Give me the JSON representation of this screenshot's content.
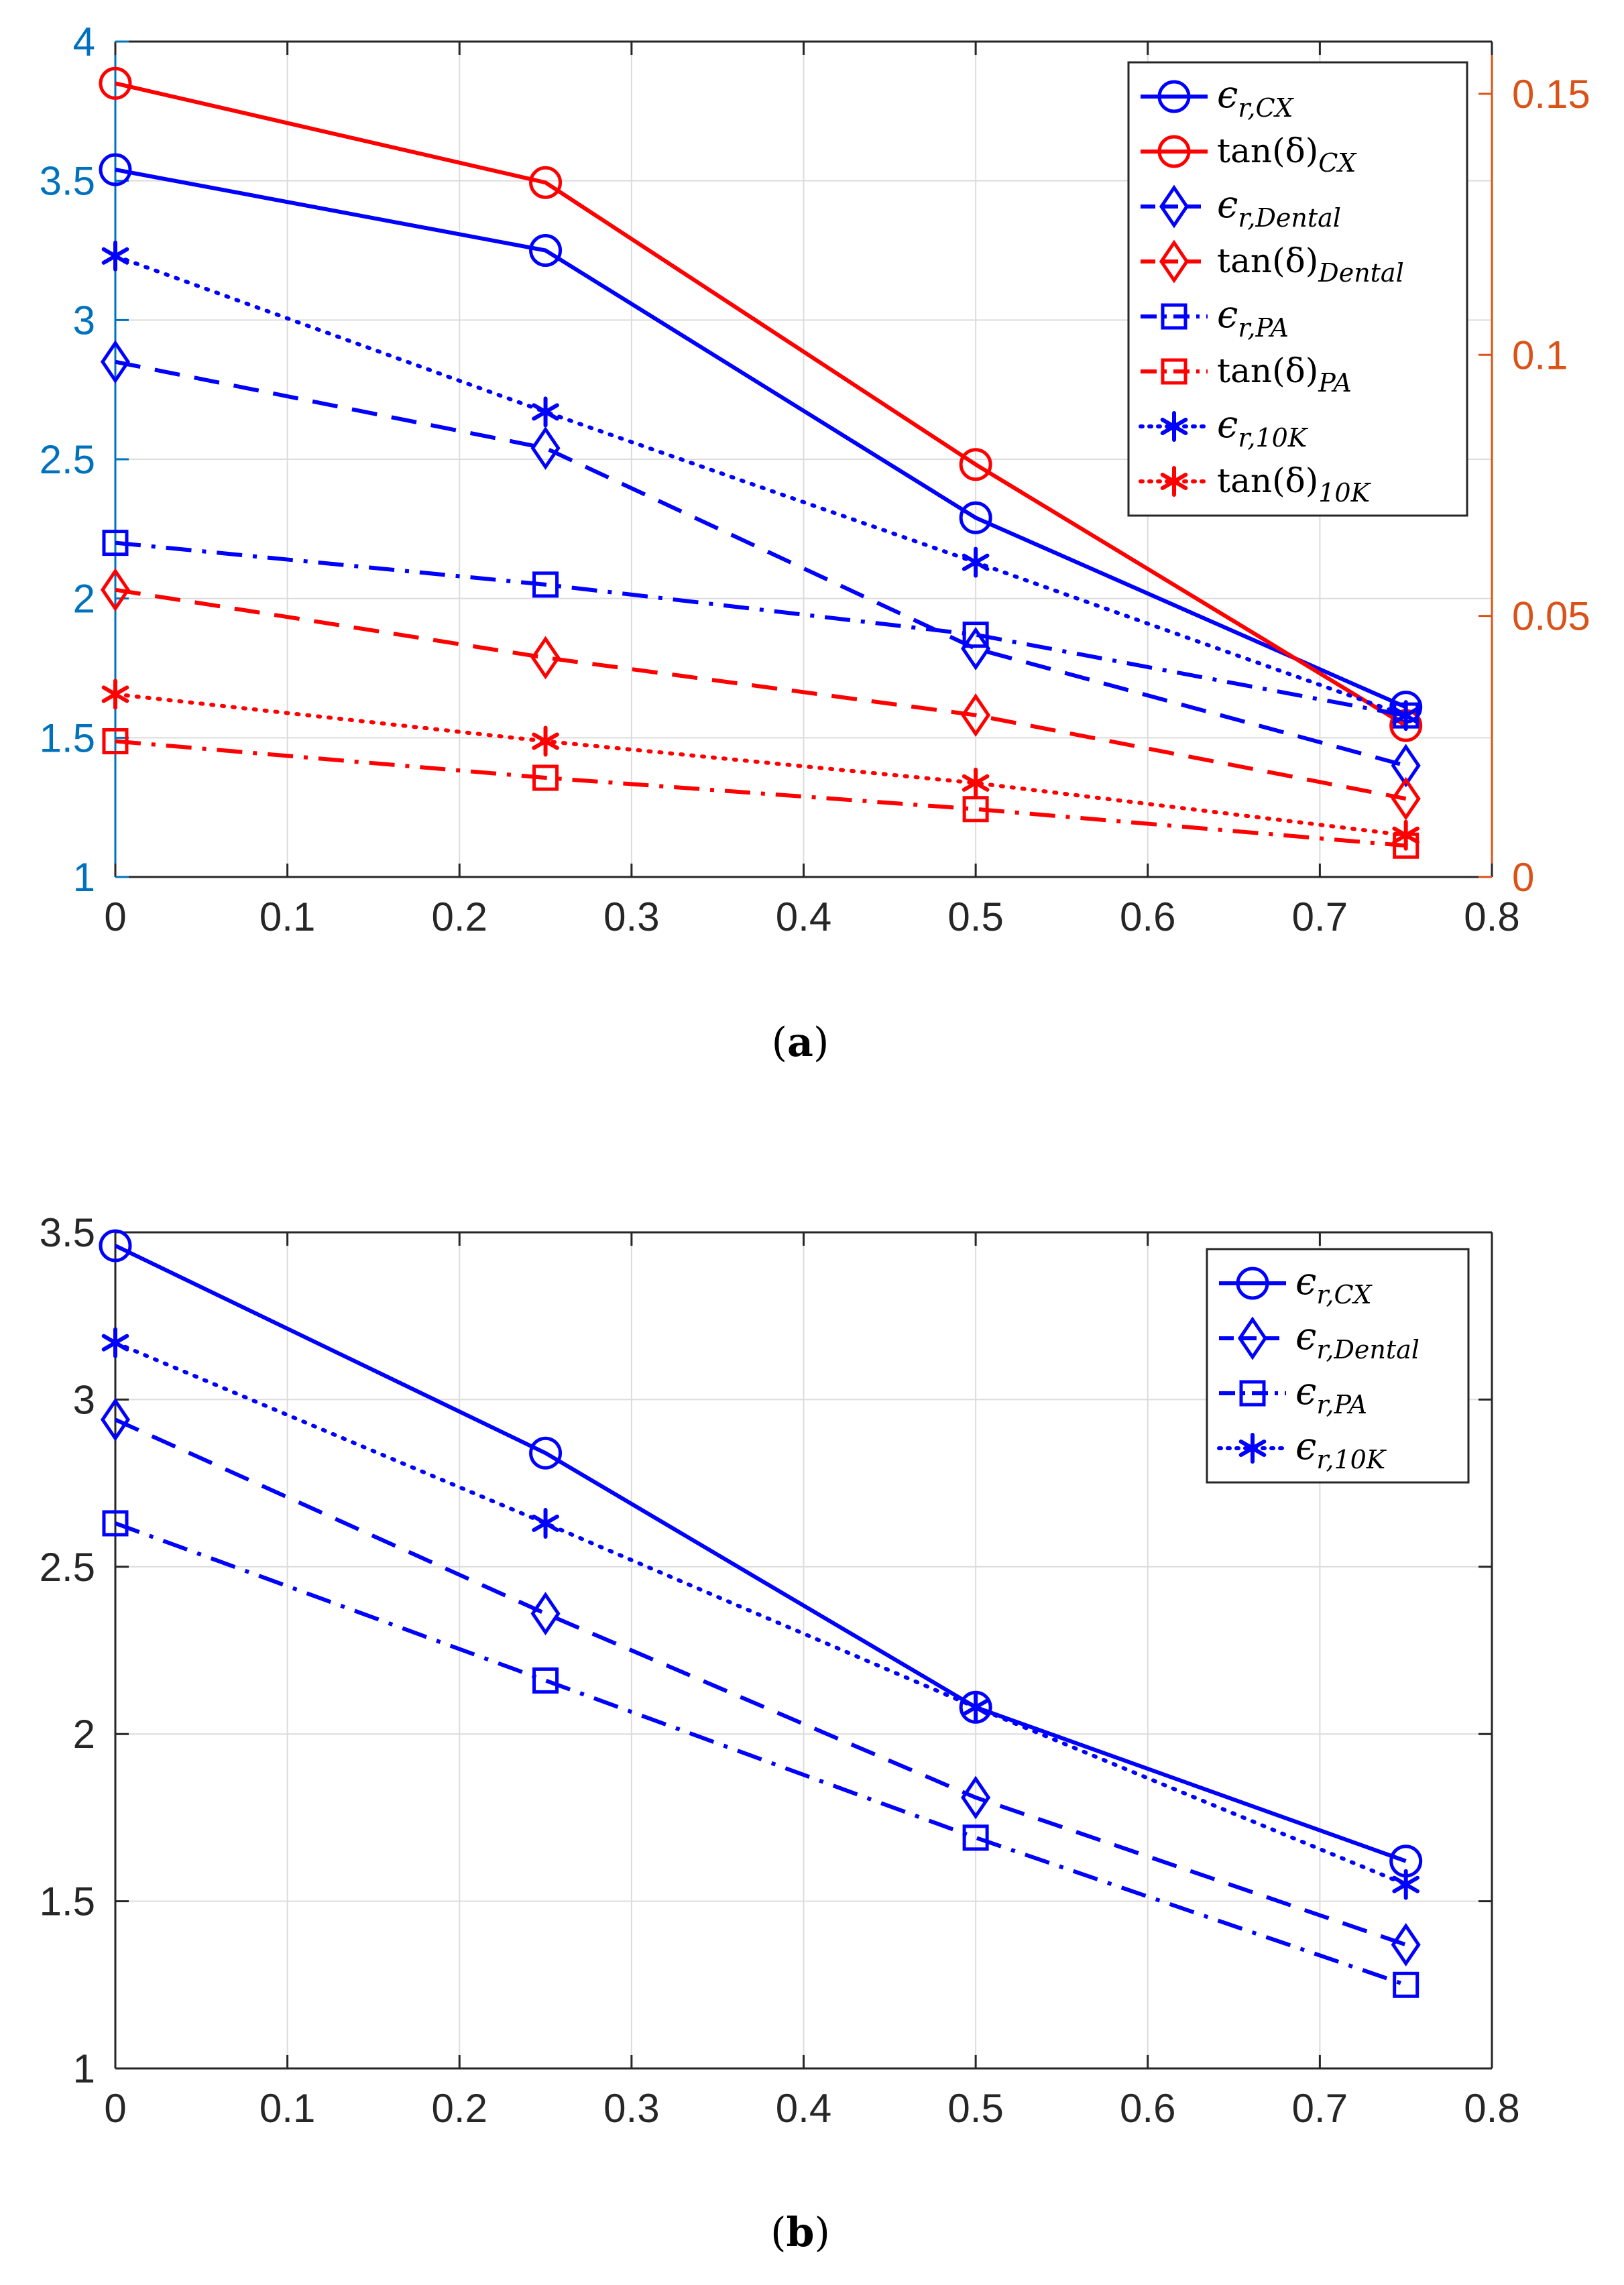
{
  "chart_data": [
    {
      "panel": "(a)",
      "caption_letter": "a",
      "type": "line",
      "x": [
        0,
        0.25,
        0.5,
        0.75
      ],
      "xlim": [
        0,
        0.8
      ],
      "xticks": [
        "0",
        "0.1",
        "0.2",
        "0.3",
        "0.4",
        "0.5",
        "0.6",
        "0.7",
        "0.8"
      ],
      "ylim": [
        1,
        4
      ],
      "yticks": [
        "1",
        "1.5",
        "2",
        "2.5",
        "3",
        "3.5",
        "4"
      ],
      "y2lim": [
        0,
        0.16
      ],
      "y2ticks": [
        "0",
        "0.05",
        "0.1",
        "0.15"
      ],
      "grid": true,
      "legend_position": "top-right",
      "colors": {
        "blue": "#0000ff",
        "red": "#ff0000",
        "left_axis": "#0072bd",
        "right_axis": "#d95319"
      },
      "series": [
        {
          "name": "ε_{r,CX}",
          "main": "ϵ",
          "sub": "r,CX",
          "axis": "left",
          "color": "blue",
          "dash": "solid",
          "marker": "circle",
          "values": [
            3.54,
            3.25,
            2.29,
            1.61
          ]
        },
        {
          "name": "tan(δ)_{CX}",
          "main": "tan(δ)",
          "sub": "CX",
          "axis": "right",
          "color": "red",
          "dash": "solid",
          "marker": "circle",
          "values": [
            0.152,
            0.133,
            0.079,
            0.029
          ]
        },
        {
          "name": "ε_{r,Dental}",
          "main": "ϵ",
          "sub": "r,Dental",
          "axis": "left",
          "color": "blue",
          "dash": "dashed",
          "marker": "diamond",
          "values": [
            2.85,
            2.54,
            1.82,
            1.4
          ]
        },
        {
          "name": "tan(δ)_{Dental}",
          "main": "tan(δ)",
          "sub": "Dental",
          "axis": "right",
          "color": "red",
          "dash": "dashed",
          "marker": "diamond",
          "values": [
            0.055,
            0.042,
            0.031,
            0.015
          ]
        },
        {
          "name": "ε_{r,PA}",
          "main": "ϵ",
          "sub": "r,PA",
          "axis": "left",
          "color": "blue",
          "dash": "dashdot",
          "marker": "square",
          "values": [
            2.2,
            2.05,
            1.87,
            1.58
          ]
        },
        {
          "name": "tan(δ)_{PA}",
          "main": "tan(δ)",
          "sub": "PA",
          "axis": "right",
          "color": "red",
          "dash": "dashdot",
          "marker": "square",
          "values": [
            0.026,
            0.019,
            0.013,
            0.006
          ]
        },
        {
          "name": "ε_{r,10K}",
          "main": "ϵ",
          "sub": "r,10K",
          "axis": "left",
          "color": "blue",
          "dash": "dotted",
          "marker": "asterisk",
          "values": [
            3.23,
            2.67,
            2.13,
            1.58
          ]
        },
        {
          "name": "tan(δ)_{10K}",
          "main": "tan(δ)",
          "sub": "10K",
          "axis": "right",
          "color": "red",
          "dash": "dotted",
          "marker": "asterisk",
          "values": [
            0.035,
            0.026,
            0.018,
            0.008
          ]
        }
      ]
    },
    {
      "panel": "(b)",
      "caption_letter": "b",
      "type": "line",
      "x": [
        0,
        0.25,
        0.5,
        0.75
      ],
      "xlim": [
        0,
        0.8
      ],
      "xticks": [
        "0",
        "0.1",
        "0.2",
        "0.3",
        "0.4",
        "0.5",
        "0.6",
        "0.7",
        "0.8"
      ],
      "ylim": [
        1,
        3.5
      ],
      "yticks": [
        "1",
        "1.5",
        "2",
        "2.5",
        "3",
        "3.5"
      ],
      "grid": true,
      "legend_position": "top-right",
      "colors": {
        "blue": "#0000ff",
        "axis": "#262626"
      },
      "series": [
        {
          "name": "ε_{r,CX}",
          "main": "ϵ",
          "sub": "r,CX",
          "axis": "left",
          "color": "blue",
          "dash": "solid",
          "marker": "circle",
          "values": [
            3.46,
            2.84,
            2.08,
            1.62
          ]
        },
        {
          "name": "ε_{r,Dental}",
          "main": "ϵ",
          "sub": "r,Dental",
          "axis": "left",
          "color": "blue",
          "dash": "dashed",
          "marker": "diamond",
          "values": [
            2.94,
            2.36,
            1.81,
            1.37
          ]
        },
        {
          "name": "ε_{r,PA}",
          "main": "ϵ",
          "sub": "r,PA",
          "axis": "left",
          "color": "blue",
          "dash": "dashdot",
          "marker": "square",
          "values": [
            2.63,
            2.16,
            1.69,
            1.25
          ]
        },
        {
          "name": "ε_{r,10K}",
          "main": "ϵ",
          "sub": "r,10K",
          "axis": "left",
          "color": "blue",
          "dash": "dotted",
          "marker": "asterisk",
          "values": [
            3.17,
            2.63,
            2.08,
            1.55
          ]
        }
      ]
    }
  ]
}
